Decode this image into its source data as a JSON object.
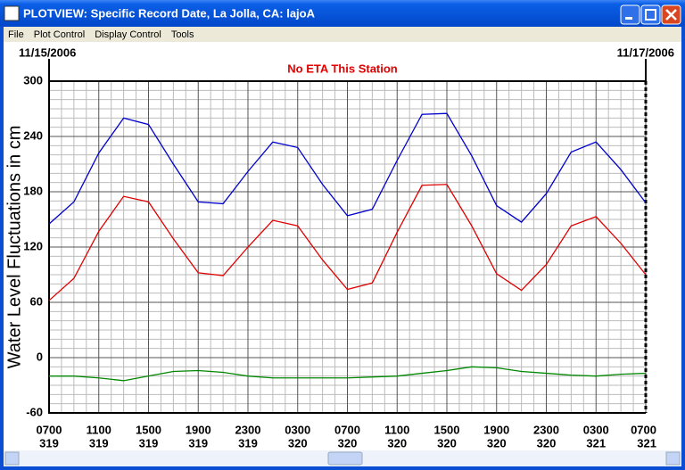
{
  "window": {
    "title": "PLOTVIEW: Specific Record Date, La Jolla, CA: lajoA"
  },
  "menu": [
    "File",
    "Plot Control",
    "Display Control",
    "Tools"
  ],
  "chart_data": {
    "type": "line",
    "start_date": "11/15/2006",
    "end_date": "11/17/2006",
    "annotation": "No ETA This Station",
    "y_label": "Water Level Fluctuations in cm",
    "xlim": [
      0,
      48
    ],
    "xticks": [
      {
        "value": 0,
        "label": "0700",
        "day": "319"
      },
      {
        "value": 4,
        "label": "1100",
        "day": "319"
      },
      {
        "value": 8,
        "label": "1500",
        "day": "319"
      },
      {
        "value": 12,
        "label": "1900",
        "day": "319"
      },
      {
        "value": 16,
        "label": "2300",
        "day": "319"
      },
      {
        "value": 20,
        "label": "0300",
        "day": "320"
      },
      {
        "value": 24,
        "label": "0700",
        "day": "320"
      },
      {
        "value": 28,
        "label": "1100",
        "day": "320"
      },
      {
        "value": 32,
        "label": "1500",
        "day": "320"
      },
      {
        "value": 36,
        "label": "1900",
        "day": "320"
      },
      {
        "value": 40,
        "label": "2300",
        "day": "320"
      },
      {
        "value": 44,
        "label": "0300",
        "day": "321"
      },
      {
        "value": 48,
        "label": "0700",
        "day": "321"
      }
    ],
    "ylim": [
      -60,
      300
    ],
    "yticks": [
      -60,
      0,
      60,
      120,
      180,
      240,
      300
    ],
    "grid": true,
    "minor_grid": true,
    "x": [
      0,
      2,
      4,
      6,
      8,
      10,
      12,
      14,
      16,
      18,
      20,
      22,
      24,
      26,
      28,
      30,
      32,
      34,
      36,
      38,
      40,
      42,
      44,
      46,
      48
    ],
    "series": [
      {
        "color": "#0000cc",
        "values": [
          145,
          169,
          222,
          260,
          253,
          210,
          169,
          167,
          202,
          234,
          228,
          188,
          154,
          161,
          214,
          264,
          265,
          219,
          165,
          147,
          178,
          223,
          234,
          204,
          168
        ]
      },
      {
        "color": "#e00000",
        "values": [
          62,
          86,
          137,
          175,
          169,
          129,
          92,
          89,
          120,
          149,
          143,
          106,
          74,
          81,
          136,
          187,
          188,
          143,
          91,
          73,
          101,
          143,
          153,
          124,
          90
        ]
      },
      {
        "color": "#008800",
        "values": [
          -20,
          -20,
          -22,
          -25,
          -20,
          -15,
          -14,
          -16,
          -20,
          -22,
          -22,
          -22,
          -22,
          -21,
          -20,
          -17,
          -14,
          -10,
          -11,
          -15,
          -17,
          -19,
          -20,
          -18,
          -17
        ]
      }
    ]
  }
}
